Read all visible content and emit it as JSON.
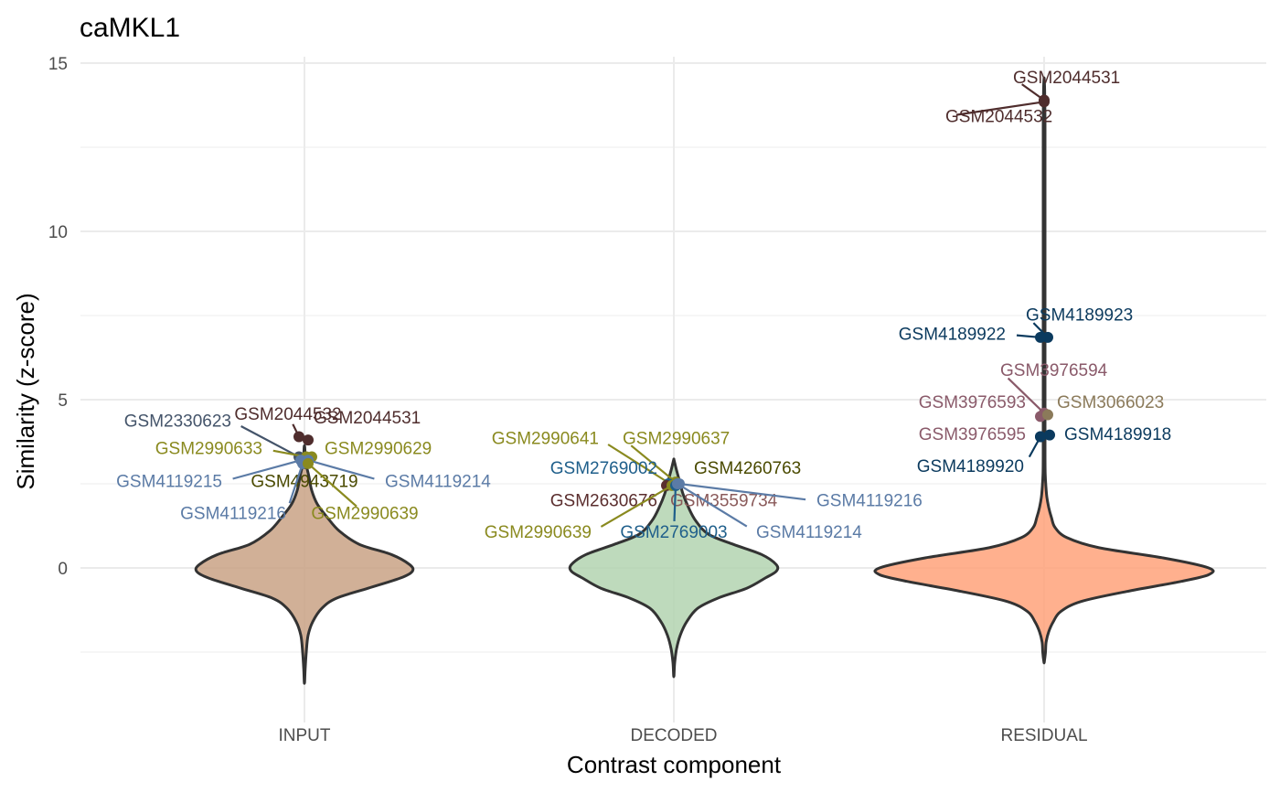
{
  "chart_data": {
    "type": "violin",
    "title": "caMKL1",
    "xlabel": "Contrast component",
    "ylabel": "Similarity (z-score)",
    "ylim": [
      -4.3,
      15.3
    ],
    "yticks": [
      0,
      5,
      10,
      15
    ],
    "categories": [
      "INPUT",
      "DECODED",
      "RESIDUAL"
    ],
    "grid": true,
    "violins": [
      {
        "category": "INPUT",
        "fill": "#C9A285",
        "profile": [
          [
            -3.4,
            0.2
          ],
          [
            -3.0,
            0.8
          ],
          [
            -2.5,
            2.0
          ],
          [
            -2.0,
            4.0
          ],
          [
            -1.6,
            9.0
          ],
          [
            -1.2,
            19.0
          ],
          [
            -0.9,
            35.0
          ],
          [
            -0.6,
            70.0
          ],
          [
            -0.3,
            105.0
          ],
          [
            -0.1,
            118.0
          ],
          [
            0.1,
            115.0
          ],
          [
            0.4,
            95.0
          ],
          [
            0.7,
            60.0
          ],
          [
            1.1,
            38.0
          ],
          [
            1.5,
            25.0
          ],
          [
            1.9,
            14.0
          ],
          [
            2.3,
            8.0
          ],
          [
            2.7,
            5.0
          ],
          [
            3.0,
            2.5
          ],
          [
            3.3,
            1.0
          ],
          [
            3.6,
            0.3
          ]
        ]
      },
      {
        "category": "DECODED",
        "fill": "#B3D4B0",
        "profile": [
          [
            -3.2,
            0.2
          ],
          [
            -2.8,
            1.0
          ],
          [
            -2.4,
            3.0
          ],
          [
            -2.0,
            7.0
          ],
          [
            -1.6,
            14.0
          ],
          [
            -1.2,
            26.0
          ],
          [
            -0.9,
            48.0
          ],
          [
            -0.6,
            80.0
          ],
          [
            -0.3,
            100.0
          ],
          [
            -0.1,
            112.0
          ],
          [
            0.1,
            112.0
          ],
          [
            0.4,
            96.0
          ],
          [
            0.7,
            65.0
          ],
          [
            1.0,
            38.0
          ],
          [
            1.4,
            24.0
          ],
          [
            1.8,
            16.0
          ],
          [
            2.2,
            10.0
          ],
          [
            2.6,
            6.0
          ],
          [
            2.9,
            3.0
          ],
          [
            3.2,
            0.3
          ]
        ]
      },
      {
        "category": "RESIDUAL",
        "fill": "#FFA27A",
        "profile": [
          [
            -2.8,
            0.2
          ],
          [
            -2.5,
            1.5
          ],
          [
            -2.2,
            2.2
          ],
          [
            -1.9,
            5.0
          ],
          [
            -1.6,
            10.0
          ],
          [
            -1.3,
            18.0
          ],
          [
            -1.0,
            40.0
          ],
          [
            -0.7,
            90.0
          ],
          [
            -0.4,
            150.0
          ],
          [
            -0.2,
            180.0
          ],
          [
            0.0,
            180.0
          ],
          [
            0.3,
            130.0
          ],
          [
            0.6,
            60.0
          ],
          [
            0.9,
            25.0
          ],
          [
            1.2,
            12.0
          ],
          [
            1.5,
            8.0
          ],
          [
            1.8,
            5.0
          ],
          [
            2.1,
            3.0
          ],
          [
            2.4,
            2.0
          ],
          [
            2.8,
            1.2
          ],
          [
            3.5,
            1.0
          ],
          [
            5.0,
            1.0
          ],
          [
            7.0,
            1.0
          ],
          [
            9.0,
            1.0
          ],
          [
            11.0,
            1.0
          ],
          [
            13.0,
            1.0
          ],
          [
            14.0,
            0.7
          ],
          [
            14.5,
            0.2
          ]
        ]
      }
    ],
    "points": [
      {
        "category": "INPUT",
        "label": "GSM2044532",
        "y": 3.9,
        "dx": -6,
        "color": "#4F2D2D",
        "lx": -18,
        "ly": 4.4,
        "anchor": "middle",
        "lcolor": "#4F2D2D"
      },
      {
        "category": "INPUT",
        "label": "GSM2044531",
        "y": 3.8,
        "dx": 4,
        "color": "#4F2D2D",
        "lx": 10,
        "ly": 4.3,
        "anchor": "start",
        "lcolor": "#4F2D2D"
      },
      {
        "category": "INPUT",
        "label": "GSM2330623",
        "y": 3.3,
        "dx": -6,
        "color": "#44546A",
        "lx": -80,
        "ly": 4.2,
        "anchor": "end",
        "lcolor": "#44546A"
      },
      {
        "category": "INPUT",
        "label": "GSM2990633",
        "y": 3.3,
        "dx": 2,
        "color": "#8A8A1F",
        "lx": -46,
        "ly": 3.38,
        "anchor": "end",
        "lcolor": "#8A8A1F"
      },
      {
        "category": "INPUT",
        "label": "GSM2990629",
        "y": 3.3,
        "dx": 8,
        "color": "#8A8A1F",
        "lx": 22,
        "ly": 3.38,
        "anchor": "start",
        "lcolor": "#8A8A1F"
      },
      {
        "category": "INPUT",
        "label": "GSM4119215",
        "y": 3.2,
        "dx": -4,
        "color": "#5B7BA6",
        "lx": -90,
        "ly": 2.4,
        "anchor": "end",
        "lcolor": "#5B7BA6"
      },
      {
        "category": "INPUT",
        "label": "GSM4943719",
        "y": 3.1,
        "dx": 0,
        "color": "#4A4A00",
        "lx": 0,
        "ly": 2.4,
        "anchor": "middle",
        "lcolor": "#4A4A00"
      },
      {
        "category": "INPUT",
        "label": "GSM4119214",
        "y": 3.2,
        "dx": 4,
        "color": "#5B7BA6",
        "lx": 88,
        "ly": 2.4,
        "anchor": "start",
        "lcolor": "#5B7BA6"
      },
      {
        "category": "INPUT",
        "label": "GSM4119216",
        "y": 3.1,
        "dx": -2,
        "color": "#5B7BA6",
        "lx": -20,
        "ly": 1.45,
        "anchor": "end",
        "lcolor": "#5B7BA6"
      },
      {
        "category": "INPUT",
        "label": "GSM2990639",
        "y": 3.1,
        "dx": 4,
        "color": "#8A8A1F",
        "lx": 66,
        "ly": 1.45,
        "anchor": "middle",
        "lcolor": "#8A8A1F"
      },
      {
        "category": "DECODED",
        "label": "GSM2990641",
        "y": 2.5,
        "dx": -4,
        "color": "#8A8A1F",
        "lx": -82,
        "ly": 3.68,
        "anchor": "end",
        "lcolor": "#8A8A1F"
      },
      {
        "category": "DECODED",
        "label": "GSM2990637",
        "y": 2.55,
        "dx": 2,
        "color": "#8A8A1F",
        "lx": -56,
        "ly": 3.68,
        "anchor": "start",
        "lcolor": "#8A8A1F"
      },
      {
        "category": "DECODED",
        "label": "GSM2769002",
        "y": 2.5,
        "dx": -6,
        "color": "#1F5F8B",
        "lx": -18,
        "ly": 2.8,
        "anchor": "end",
        "lcolor": "#1F5F8B"
      },
      {
        "category": "DECODED",
        "label": "GSM4260763",
        "y": 2.5,
        "dx": 4,
        "color": "#4A4A00",
        "lx": 22,
        "ly": 2.8,
        "anchor": "start",
        "lcolor": "#4A4A00"
      },
      {
        "category": "DECODED",
        "label": "GSM2630676",
        "y": 2.45,
        "dx": -8,
        "color": "#5B2E2E",
        "lx": -18,
        "ly": 1.83,
        "anchor": "end",
        "lcolor": "#5B2E2E"
      },
      {
        "category": "DECODED",
        "label": "GSM3559734",
        "y": 2.45,
        "dx": 2,
        "color": "#8A5A5A",
        "lx": -4,
        "ly": 1.83,
        "anchor": "start",
        "lcolor": "#8A5A5A"
      },
      {
        "category": "DECODED",
        "label": "GSM4119216",
        "y": 2.5,
        "dx": 6,
        "color": "#5B7BA6",
        "lx": 156,
        "ly": 1.83,
        "anchor": "start",
        "lcolor": "#5B7BA6"
      },
      {
        "category": "DECODED",
        "label": "GSM2990639",
        "y": 2.45,
        "dx": -2,
        "color": "#8A8A1F",
        "lx": -90,
        "ly": 0.9,
        "anchor": "end",
        "lcolor": "#8A8A1F"
      },
      {
        "category": "DECODED",
        "label": "GSM2769003",
        "y": 2.45,
        "dx": 2,
        "color": "#1F5F8B",
        "lx": 0,
        "ly": 0.9,
        "anchor": "middle",
        "lcolor": "#1F5F8B"
      },
      {
        "category": "DECODED",
        "label": "GSM4119214",
        "y": 2.5,
        "dx": 4,
        "color": "#5B7BA6",
        "lx": 90,
        "ly": 0.9,
        "anchor": "start",
        "lcolor": "#5B7BA6"
      },
      {
        "category": "RESIDUAL",
        "label": "GSM2044531",
        "y": 13.9,
        "dx": 0,
        "color": "#4F2D2D",
        "lx": -34,
        "ly": 14.4,
        "anchor": "start",
        "lcolor": "#4F2D2D"
      },
      {
        "category": "RESIDUAL",
        "label": "GSM2044532",
        "y": 13.85,
        "dx": 0,
        "color": "#4F2D2D",
        "lx": -108,
        "ly": 13.25,
        "anchor": "start",
        "lcolor": "#4F2D2D"
      },
      {
        "category": "RESIDUAL",
        "label": "GSM4189923",
        "y": 6.85,
        "dx": 4,
        "color": "#0B3A5E",
        "lx": -20,
        "ly": 7.35,
        "anchor": "start",
        "lcolor": "#0B3A5E"
      },
      {
        "category": "RESIDUAL",
        "label": "GSM4189922",
        "y": 6.85,
        "dx": -4,
        "color": "#0B3A5E",
        "lx": -42,
        "ly": 6.78,
        "anchor": "end",
        "lcolor": "#0B3A5E"
      },
      {
        "category": "RESIDUAL",
        "label": "GSM3976594",
        "y": 4.6,
        "dx": 0,
        "color": "#8A5A6A",
        "lx": -48,
        "ly": 5.7,
        "anchor": "start",
        "lcolor": "#8A5A6A"
      },
      {
        "category": "RESIDUAL",
        "label": "GSM3976593",
        "y": 4.5,
        "dx": -4,
        "color": "#8A5A6A",
        "lx": -20,
        "ly": 4.75,
        "anchor": "end",
        "lcolor": "#8A5A6A"
      },
      {
        "category": "RESIDUAL",
        "label": "GSM3066023",
        "y": 4.55,
        "dx": 4,
        "color": "#8B7A5A",
        "lx": 14,
        "ly": 4.75,
        "anchor": "start",
        "lcolor": "#8B7A5A"
      },
      {
        "category": "RESIDUAL",
        "label": "GSM3976595",
        "y": 3.9,
        "dx": -4,
        "color": "#0B3A5E",
        "lx": -20,
        "ly": 3.8,
        "anchor": "end",
        "lcolor": "#8A5A6A"
      },
      {
        "category": "RESIDUAL",
        "label": "GSM4189918",
        "y": 3.95,
        "dx": 6,
        "color": "#0B3A5E",
        "lx": 22,
        "ly": 3.8,
        "anchor": "start",
        "lcolor": "#0B3A5E"
      },
      {
        "category": "RESIDUAL",
        "label": "GSM4189920",
        "y": 3.9,
        "dx": -4,
        "color": "#0B3A5E",
        "lx": -22,
        "ly": 2.85,
        "anchor": "end",
        "lcolor": "#0B3A5E"
      }
    ]
  }
}
